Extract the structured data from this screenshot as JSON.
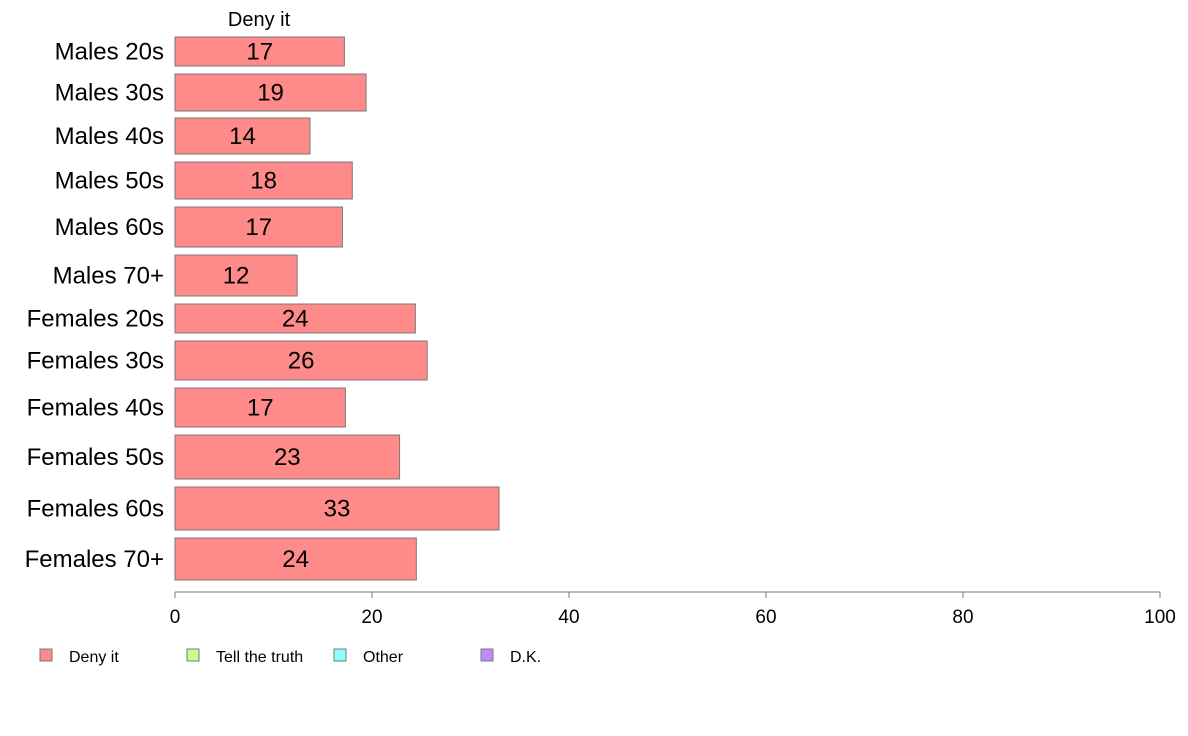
{
  "chart_data": {
    "type": "bar",
    "orientation": "horizontal",
    "categories": [
      "Males 20s",
      "Males 30s",
      "Males 40s",
      "Males 50s",
      "Males 60s",
      "Males 70+",
      "Females 20s",
      "Females 30s",
      "Females 40s",
      "Females 50s",
      "Females 60s",
      "Females 70+"
    ],
    "series": [
      {
        "name": "Deny it",
        "color": "#ff8a8a",
        "values": [
          17.2,
          19.4,
          13.7,
          18.0,
          17.0,
          12.4,
          24.4,
          25.6,
          17.3,
          22.8,
          32.9,
          24.5
        ]
      }
    ],
    "value_labels": [
      "17",
      "19",
      "14",
      "18",
      "17",
      "12",
      "24",
      "26",
      "17",
      "23",
      "33",
      "24"
    ],
    "column_header": "Deny it",
    "xlim": [
      0,
      100
    ],
    "xticks": [
      "0",
      "20",
      "40",
      "60",
      "80",
      "100"
    ],
    "grid": false,
    "legend": {
      "position": "bottom-left",
      "items": [
        {
          "label": "Deny it",
          "color": "#ff8a8a"
        },
        {
          "label": "Tell the truth",
          "color": "#c8ff8a"
        },
        {
          "label": "Other",
          "color": "#8affff"
        },
        {
          "label": "D.K.",
          "color": "#c08aff"
        }
      ]
    }
  }
}
